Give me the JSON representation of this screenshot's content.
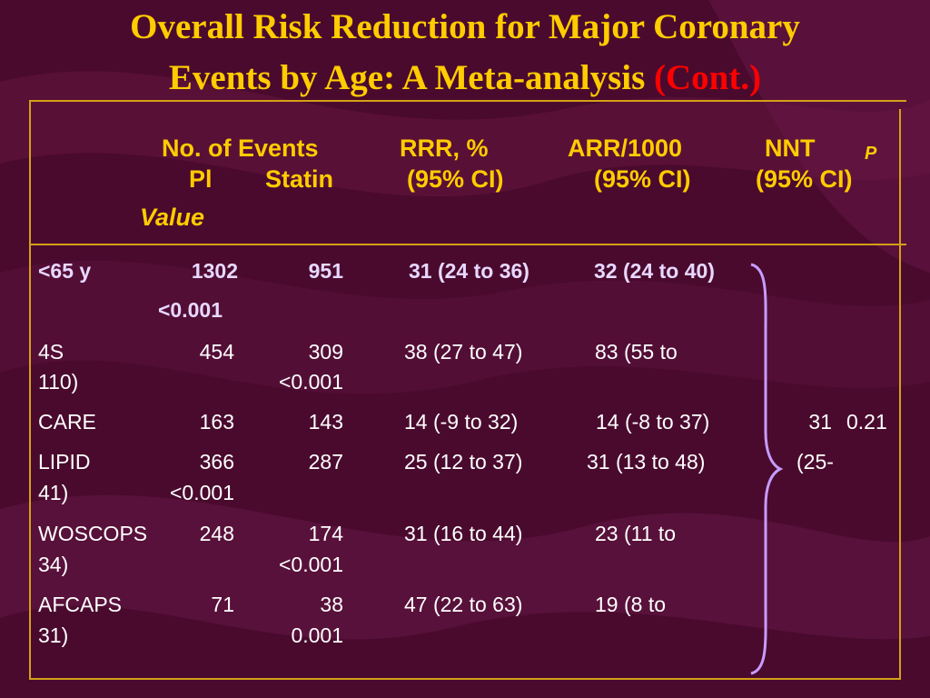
{
  "slide": {
    "title_line1": "Overall Risk Reduction for Major Coronary",
    "title_line2": "Events by Age: A Meta-analysis",
    "title_cont": "(Cont.)",
    "colors": {
      "background": "#4a0a2e",
      "title": "#ffcc00",
      "accent": "#ff0000",
      "rule": "#d4a017",
      "brace": "#c79cff",
      "text": "#ffffff"
    }
  },
  "table": {
    "headers": {
      "no_events": "No. of Events",
      "pl": "Pl",
      "statin": "Statin",
      "rrr": "RRR, %",
      "rrr_ci": "(95% CI)",
      "arr": "ARR/1000",
      "arr_ci": "(95% CI)",
      "nnt": "NNT",
      "nnt_ci": "(95% CI)",
      "p": "P",
      "value": "Value"
    },
    "summary_row": {
      "group": "<65 y",
      "pl": "1302",
      "statin": "951",
      "rrr": "31 (24 to 36)",
      "arr": "32 (24 to 40)",
      "p": "<0.001"
    },
    "rows": [
      {
        "study": "4S",
        "pl": "454",
        "statin": "309",
        "rrr": "38 (27 to 47)",
        "arr_part1": "83 (55 to",
        "arr_part2": "110)",
        "p": "<0.001"
      },
      {
        "study": "CARE",
        "pl": "163",
        "statin": "143",
        "rrr": "14 (-9 to 32)",
        "arr_part1": "14 (-8 to 37)",
        "nnt": "31",
        "p": "0.21"
      },
      {
        "study": "LIPID",
        "pl": "366",
        "statin": "287",
        "rrr": "25 (12 to 37)",
        "arr_part1": "31 (13 to 48)",
        "nnt_part1": "(25-",
        "nnt_part2": "41)",
        "p": "<0.001"
      },
      {
        "study": "WOSCOPS",
        "pl": "248",
        "statin": "174",
        "rrr": "31 (16 to 44)",
        "arr_part1": "23 (11 to",
        "arr_part2": "34)",
        "p": "<0.001"
      },
      {
        "study": "AFCAPS",
        "pl": "71",
        "statin": "38",
        "rrr": "47 (22 to 63)",
        "arr_part1": "19 (8 to",
        "arr_part2": "31)",
        "p": "0.001"
      }
    ]
  }
}
